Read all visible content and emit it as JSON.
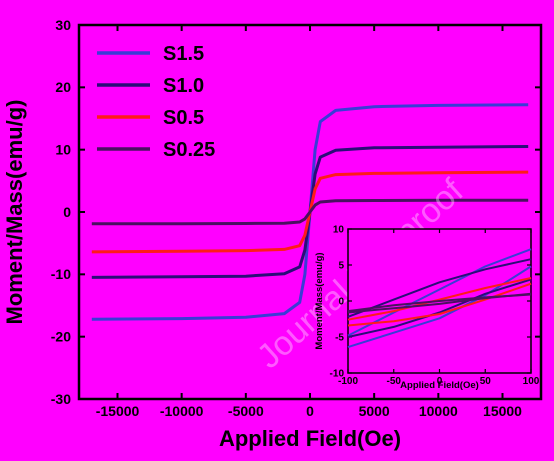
{
  "watermark": "Journal Pre-proof",
  "chart_data": [
    {
      "type": "line",
      "title": "",
      "xlabel": "Applied Field(Oe)",
      "ylabel": "Moment/Mass(emu/g)",
      "xlim": [
        -18000,
        18000
      ],
      "ylim": [
        -30,
        30
      ],
      "xticks": [
        -15000,
        -10000,
        -5000,
        0,
        5000,
        10000,
        15000
      ],
      "yticks": [
        -30,
        -20,
        -10,
        0,
        10,
        20,
        30
      ],
      "legend": "top-left",
      "series": [
        {
          "name": "S1.5",
          "color": "#3b3bd6",
          "Ms": 17.2,
          "x": [
            -17000,
            -10000,
            -5000,
            -2000,
            -800,
            -400,
            0,
            400,
            800,
            2000,
            5000,
            10000,
            17000
          ],
          "y": [
            -17.2,
            -17.1,
            -16.9,
            -16.3,
            -14.5,
            -10.0,
            0,
            10.0,
            14.5,
            16.3,
            16.9,
            17.1,
            17.2
          ]
        },
        {
          "name": "S1.0",
          "color": "#2b0c78",
          "Ms": 10.5,
          "x": [
            -17000,
            -10000,
            -5000,
            -2000,
            -800,
            -400,
            0,
            400,
            800,
            2000,
            5000,
            10000,
            17000
          ],
          "y": [
            -10.5,
            -10.4,
            -10.3,
            -9.9,
            -8.8,
            -6.1,
            0,
            6.1,
            8.8,
            9.9,
            10.3,
            10.4,
            10.5
          ]
        },
        {
          "name": "S0.5",
          "color": "#ff1a1a",
          "Ms": 6.4,
          "x": [
            -17000,
            -10000,
            -5000,
            -2000,
            -800,
            -400,
            0,
            400,
            800,
            2000,
            5000,
            10000,
            17000
          ],
          "y": [
            -6.4,
            -6.3,
            -6.2,
            -6.0,
            -5.4,
            -3.7,
            0,
            3.7,
            5.4,
            6.0,
            6.2,
            6.3,
            6.4
          ]
        },
        {
          "name": "S0.25",
          "color": "#4a1060",
          "Ms": 1.9,
          "x": [
            -17000,
            -10000,
            -5000,
            -2000,
            -800,
            -400,
            0,
            400,
            800,
            2000,
            5000,
            10000,
            17000
          ],
          "y": [
            -1.9,
            -1.9,
            -1.85,
            -1.8,
            -1.6,
            -1.1,
            0,
            1.1,
            1.6,
            1.8,
            1.85,
            1.9,
            1.9
          ]
        }
      ]
    },
    {
      "type": "line",
      "title": "",
      "xlabel": "Applied Field(Oe)",
      "ylabel": "Moment/Mass(emu/g)",
      "xlim": [
        -100,
        100
      ],
      "ylim": [
        -10,
        10
      ],
      "xticks": [
        -100,
        -50,
        0,
        50,
        100
      ],
      "yticks": [
        -10,
        -5,
        0,
        5,
        10
      ],
      "legend": "none",
      "series": [
        {
          "name": "S1.5",
          "color": "#3b3bd6",
          "branches": [
            {
              "x": [
                -100,
                -50,
                0,
                50,
                100
              ],
              "y": [
                -4.8,
                -1.6,
                1.6,
                4.8,
                7.2
              ]
            },
            {
              "x": [
                -100,
                -50,
                0,
                50,
                100
              ],
              "y": [
                -6.4,
                -4.4,
                -2.4,
                0.8,
                4.8
              ]
            }
          ]
        },
        {
          "name": "S1.0",
          "color": "#2b0c78",
          "branches": [
            {
              "x": [
                -100,
                -50,
                0,
                50,
                100
              ],
              "y": [
                -2.2,
                0.2,
                2.6,
                4.4,
                5.8
              ]
            },
            {
              "x": [
                -100,
                -50,
                0,
                50,
                100
              ],
              "y": [
                -5.0,
                -3.6,
                -1.6,
                1.0,
                3.0
              ]
            }
          ]
        },
        {
          "name": "S0.5",
          "color": "#ff1a1a",
          "branches": [
            {
              "x": [
                -100,
                -50,
                0,
                50,
                100
              ],
              "y": [
                -2.6,
                -1.4,
                0.2,
                1.8,
                3.2
              ]
            },
            {
              "x": [
                -100,
                -50,
                0,
                50,
                100
              ],
              "y": [
                -3.4,
                -2.8,
                -1.8,
                0.2,
                2.4
              ]
            }
          ]
        },
        {
          "name": "S0.25",
          "color": "#4a1060",
          "branches": [
            {
              "x": [
                -100,
                -50,
                0,
                50,
                100
              ],
              "y": [
                -1.4,
                -0.6,
                0.0,
                0.5,
                0.9
              ]
            },
            {
              "x": [
                -100,
                -50,
                0,
                50,
                100
              ],
              "y": [
                -1.6,
                -1.0,
                -0.4,
                0.4,
                1.0
              ]
            }
          ]
        }
      ]
    }
  ]
}
